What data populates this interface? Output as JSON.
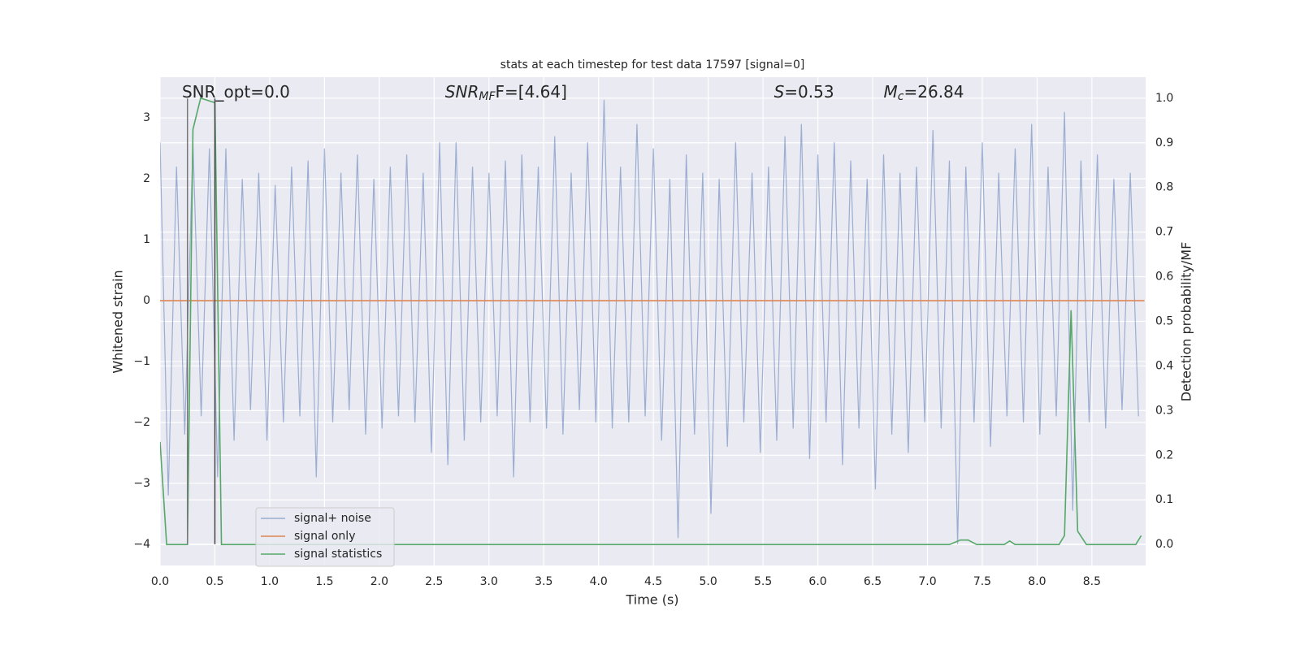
{
  "chart_data": {
    "type": "line",
    "title": "stats at each timestep for test data 17597 [signal=0]",
    "xlabel": "Time (s)",
    "ylabel": "Whitened strain",
    "y2label": "Detection probability/MF",
    "xlim": [
      0,
      8.99
    ],
    "ylim": [
      -4.35,
      3.67
    ],
    "y2lim": [
      -0.047,
      1.047
    ],
    "xticks": [
      {
        "value": 0,
        "label": "0.0"
      },
      0.5,
      {
        "value": 1,
        "label": "1.0"
      },
      1.5,
      {
        "value": 2,
        "label": "2.0"
      },
      2.5,
      {
        "value": 3,
        "label": "3.0"
      },
      3.5,
      {
        "value": 4,
        "label": "4.0"
      },
      4.5,
      {
        "value": 5,
        "label": "5.0"
      },
      5.5,
      {
        "value": 6,
        "label": "6.0"
      },
      6.5,
      {
        "value": 7,
        "label": "7.0"
      },
      7.5,
      {
        "value": 8,
        "label": "8.0"
      },
      8.5
    ],
    "yticks": [
      {
        "value": -4,
        "label": "−4"
      },
      {
        "value": -3,
        "label": "−3"
      },
      {
        "value": -2,
        "label": "−2"
      },
      {
        "value": -1,
        "label": "−1"
      },
      0,
      1,
      2,
      3
    ],
    "y2ticks": [
      {
        "value": 0,
        "label": "0.0"
      },
      0.1,
      0.2,
      0.3,
      0.4,
      0.5,
      0.6,
      0.7,
      0.8,
      0.9,
      {
        "value": 1,
        "label": "1.0"
      }
    ],
    "grid": true,
    "legend": "lower left",
    "series": [
      {
        "name": "signal+ noise",
        "color": "#4c72b0",
        "x": [
          0,
          0.075,
          0.15,
          0.225,
          0.3,
          0.375,
          0.45,
          0.525,
          0.6,
          0.675,
          0.75,
          0.825,
          0.9,
          0.975,
          1.05,
          1.125,
          1.2,
          1.275,
          1.35,
          1.425,
          1.5,
          1.575,
          1.65,
          1.725,
          1.8,
          1.875,
          1.95,
          2.025,
          2.1,
          2.175,
          2.25,
          2.325,
          2.4,
          2.475,
          2.55,
          2.625,
          2.7,
          2.775,
          2.85,
          2.925,
          3,
          3.075,
          3.15,
          3.225,
          3.3,
          3.375,
          3.45,
          3.525,
          3.6,
          3.675,
          3.75,
          3.825,
          3.9,
          3.975,
          4.05,
          4.125,
          4.2,
          4.275,
          4.35,
          4.425,
          4.5,
          4.575,
          4.65,
          4.725,
          4.8,
          4.875,
          4.95,
          5.025,
          5.1,
          5.175,
          5.25,
          5.325,
          5.4,
          5.475,
          5.55,
          5.625,
          5.7,
          5.775,
          5.85,
          5.925,
          6,
          6.075,
          6.15,
          6.225,
          6.3,
          6.375,
          6.45,
          6.525,
          6.6,
          6.675,
          6.75,
          6.825,
          6.9,
          6.975,
          7.05,
          7.125,
          7.2,
          7.275,
          7.35,
          7.425,
          7.5,
          7.575,
          7.65,
          7.725,
          7.8,
          7.875,
          7.95,
          8.025,
          8.1,
          8.175,
          8.25,
          8.325,
          8.4,
          8.475,
          8.55,
          8.625,
          8.7,
          8.775,
          8.85,
          8.925
        ],
        "values": [
          2.6,
          -3.2,
          2.2,
          -2.2,
          2.6,
          -1.9,
          2.5,
          -2.9,
          2.5,
          -2.3,
          2.0,
          -1.8,
          2.1,
          -2.3,
          1.9,
          -2.0,
          2.2,
          -1.9,
          2.3,
          -2.9,
          2.5,
          -2.0,
          2.1,
          -1.8,
          2.4,
          -2.2,
          2.0,
          -2.1,
          2.2,
          -1.9,
          2.4,
          -2.0,
          2.1,
          -2.5,
          2.6,
          -2.7,
          2.6,
          -2.3,
          2.2,
          -2.0,
          2.1,
          -1.9,
          2.3,
          -2.9,
          2.4,
          -2.0,
          2.2,
          -2.1,
          2.7,
          -2.2,
          2.1,
          -1.8,
          2.6,
          -2.0,
          3.3,
          -2.1,
          2.2,
          -2.0,
          2.9,
          -1.9,
          2.5,
          -2.3,
          2.0,
          -3.9,
          2.4,
          -2.2,
          2.1,
          -3.5,
          2.0,
          -2.4,
          2.6,
          -2.0,
          2.1,
          -2.5,
          2.2,
          -2.3,
          2.7,
          -2.1,
          2.9,
          -2.6,
          2.4,
          -2.0,
          2.6,
          -2.7,
          2.3,
          -2.1,
          2.0,
          -3.1,
          2.4,
          -2.2,
          2.1,
          -2.5,
          2.2,
          -2.0,
          2.8,
          -2.1,
          2.3,
          -4.0,
          2.2,
          -2.0,
          2.6,
          -2.4,
          2.1,
          -1.9,
          2.5,
          -2.0,
          2.9,
          -2.2,
          2.2,
          -1.9,
          3.1,
          -3.45,
          2.3,
          -2.0,
          2.4,
          -2.1,
          2.0,
          -1.8,
          2.1,
          -1.9
        ]
      },
      {
        "name": "signal only",
        "color": "#dd8452",
        "x": [
          0,
          8.98
        ],
        "values": [
          0,
          0
        ]
      },
      {
        "name": "signal statistics",
        "color": "#55a868",
        "axis": "y2",
        "x": [
          0,
          0.06,
          0.25,
          0.3,
          0.37,
          0.5,
          0.56,
          7.2,
          7.3,
          7.37,
          7.45,
          7.7,
          7.75,
          7.8,
          8.2,
          8.25,
          8.31,
          8.37,
          8.45,
          8.9,
          8.95
        ],
        "values": [
          0.23,
          0.0,
          0.0,
          0.93,
          1.0,
          0.99,
          0.0,
          0.0,
          0.01,
          0.01,
          0.0,
          0.0,
          0.008,
          0.0,
          0.0,
          0.02,
          0.525,
          0.03,
          0.0,
          0.0,
          0.02
        ]
      }
    ],
    "vlines": {
      "x": [
        0.25,
        0.5
      ],
      "ymin": -4,
      "ymax": 3.32,
      "colors": [
        "#777777",
        "#444444"
      ]
    },
    "annotations": [
      {
        "x": 0.2,
        "parts": [
          {
            "text": "SNR_opt=0.0"
          }
        ]
      },
      {
        "x": 2.6,
        "parts": [
          {
            "text": "SNR",
            "style": "italic"
          },
          {
            "text": "MF",
            "style": "italic-sub"
          },
          {
            "text": "F=[4.64]"
          }
        ]
      },
      {
        "x": 5.6,
        "parts": [
          {
            "text": "S",
            "style": "italic"
          },
          {
            "text": "=0.53"
          }
        ]
      },
      {
        "x": 6.6,
        "parts": [
          {
            "text": "M",
            "style": "italic"
          },
          {
            "text": "c",
            "style": "italic-sub"
          },
          {
            "text": "=26.84"
          }
        ]
      }
    ]
  }
}
